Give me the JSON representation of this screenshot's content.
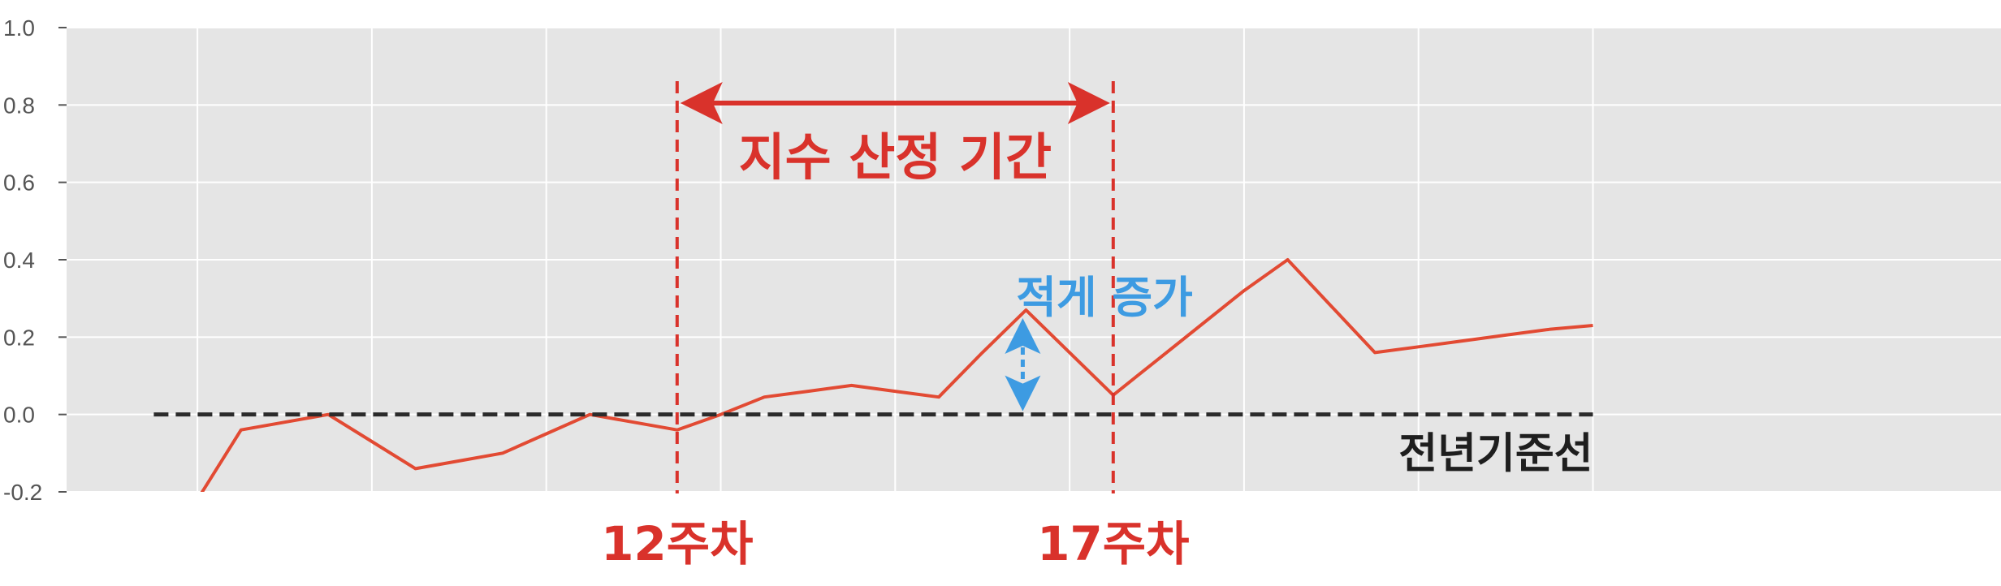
{
  "chart_data": {
    "type": "line",
    "x": [
      1,
      2,
      3,
      4,
      5,
      6,
      7,
      8,
      9,
      10,
      11,
      12,
      13,
      14,
      15,
      16,
      17,
      18,
      19,
      20,
      21,
      22,
      23,
      24,
      25,
      26,
      27,
      28,
      29,
      30,
      31,
      32,
      33,
      34,
      35
    ],
    "values": [
      -0.3,
      -0.26,
      -0.22,
      -0.04,
      -0.02,
      0.0,
      -0.07,
      -0.14,
      -0.12,
      -0.1,
      -0.05,
      0.0,
      -0.02,
      -0.04,
      0.0,
      0.045,
      0.06,
      0.075,
      0.06,
      0.045,
      0.16,
      0.27,
      0.16,
      0.05,
      0.14,
      0.23,
      0.32,
      0.4,
      0.28,
      0.16,
      0.175,
      0.19,
      0.205,
      0.22,
      0.23
    ],
    "ylim": [
      -0.2,
      1.0
    ],
    "xlim": [
      0,
      35.25
    ],
    "yticks": [
      "-0.2",
      "0.0",
      "0.2",
      "0.4",
      "0.6",
      "0.8",
      "1.0"
    ],
    "ytick_values": [
      -0.2,
      0.0,
      0.2,
      0.4,
      0.6,
      0.8,
      1.0
    ],
    "xgrid": [
      3,
      7,
      11,
      15,
      19,
      23,
      27,
      31,
      35
    ],
    "grid": true,
    "baseline": {
      "y": 0.0,
      "x_start": 2.0,
      "x_end": 35.0,
      "label": "전년기준선"
    },
    "markers": [
      {
        "x": 14,
        "label": "12주차"
      },
      {
        "x": 24,
        "label": "17주차"
      }
    ],
    "period_label": "지수 산정 기간",
    "increase": {
      "x": 22,
      "from": 0.0,
      "to": 0.27,
      "label": "적게 증가"
    },
    "colors": {
      "background": "#e5e5e5",
      "grid": "#ffffff",
      "line": "#e24a33",
      "annotation_red": "#d9322b",
      "annotation_blue": "#3d9be2",
      "baseline": "#2b2b2b",
      "tick": "#555555"
    }
  }
}
